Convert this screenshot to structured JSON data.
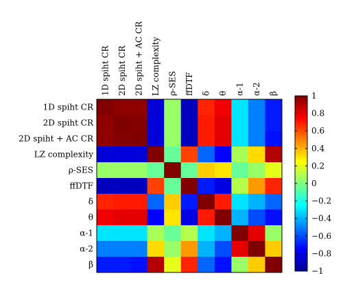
{
  "chart_data": {
    "type": "heatmap",
    "row_labels": [
      "1D spiht CR",
      "2D spiht CR",
      "2D spiht + AC CR",
      "LZ complexity",
      "ρ-SES",
      "ffDTF",
      "δ",
      "θ",
      "α-1",
      "α-2",
      "β"
    ],
    "col_labels": [
      "1D spiht CR",
      "2D spiht CR",
      "2D spiht + AC CR",
      "LZ complexity",
      "ρ-SES",
      "ffDTF",
      "δ",
      "θ",
      "α-1",
      "α-2",
      "β"
    ],
    "values": [
      [
        1.0,
        0.97,
        0.97,
        -0.83,
        0.05,
        -0.88,
        0.68,
        0.78,
        -0.3,
        -0.5,
        -0.7
      ],
      [
        0.97,
        1.0,
        0.99,
        -0.82,
        0.05,
        -0.88,
        0.7,
        0.8,
        -0.3,
        -0.5,
        -0.7
      ],
      [
        0.97,
        0.99,
        1.0,
        -0.82,
        0.05,
        -0.88,
        0.7,
        0.8,
        -0.3,
        -0.5,
        -0.72
      ],
      [
        -0.83,
        -0.82,
        -0.82,
        1.0,
        -0.05,
        0.62,
        -0.55,
        -0.75,
        0.08,
        0.32,
        0.9
      ],
      [
        0.05,
        0.05,
        0.05,
        -0.05,
        1.0,
        -0.05,
        0.35,
        0.3,
        -0.05,
        0.05,
        0.2
      ],
      [
        -0.88,
        -0.88,
        -0.88,
        0.62,
        -0.05,
        1.0,
        -0.7,
        -0.8,
        0.1,
        0.45,
        0.68
      ],
      [
        0.68,
        0.7,
        0.7,
        -0.55,
        0.35,
        -0.7,
        1.0,
        0.7,
        -0.3,
        -0.4,
        -0.55
      ],
      [
        0.78,
        0.8,
        0.8,
        -0.75,
        0.3,
        -0.8,
        0.7,
        1.0,
        -0.4,
        -0.6,
        -0.72
      ],
      [
        -0.3,
        -0.3,
        -0.3,
        0.08,
        -0.05,
        0.1,
        -0.3,
        -0.4,
        1.0,
        0.8,
        0.05
      ],
      [
        -0.5,
        -0.5,
        -0.5,
        0.32,
        0.05,
        0.45,
        -0.4,
        -0.6,
        0.8,
        1.0,
        0.35
      ],
      [
        -0.7,
        -0.7,
        -0.72,
        0.9,
        0.2,
        0.68,
        -0.55,
        -0.72,
        0.05,
        0.35,
        1.0
      ]
    ],
    "colorbar": {
      "range": [
        -1,
        1
      ],
      "ticks": [
        "1",
        "0.8",
        "0.6",
        "0.4",
        "0.2",
        "0",
        "−0.2",
        "−0.4",
        "−0.6",
        "−0.8",
        "−1"
      ],
      "colormap": "jet"
    }
  }
}
